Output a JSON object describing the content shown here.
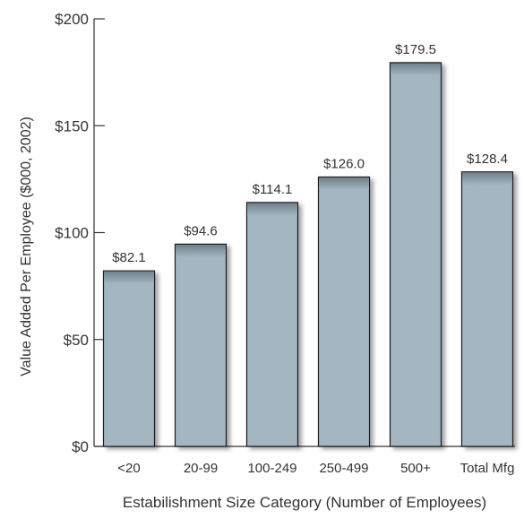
{
  "chart_data": {
    "type": "bar",
    "categories": [
      "<20",
      "20-99",
      "100-249",
      "250-499",
      "500+",
      "Total Mfg"
    ],
    "values": [
      82.1,
      94.6,
      114.1,
      126.0,
      179.5,
      128.4
    ],
    "value_labels": [
      "$82.1",
      "$94.6",
      "$114.1",
      "$126.0",
      "$179.5",
      "$128.4"
    ],
    "title": "",
    "xlabel": "Estabilishment Size Category (Number of Employees)",
    "ylabel": "Value Added Per Employee ($000, 2002)",
    "ylim": [
      0,
      200
    ],
    "yticks": [
      0,
      50,
      100,
      150,
      200
    ],
    "ytick_labels": [
      "$0",
      "$50",
      "$100",
      "$150",
      "$200"
    ],
    "grid": false,
    "legend": "none",
    "colors": {
      "bar_fill": "#a3b6c1",
      "bar_top_shadow": "#6f818c",
      "bar_stroke": "#1a1a1a",
      "bar_drop_shadow": "#c9c9c9",
      "axis": "#333333",
      "text": "#333333"
    }
  }
}
